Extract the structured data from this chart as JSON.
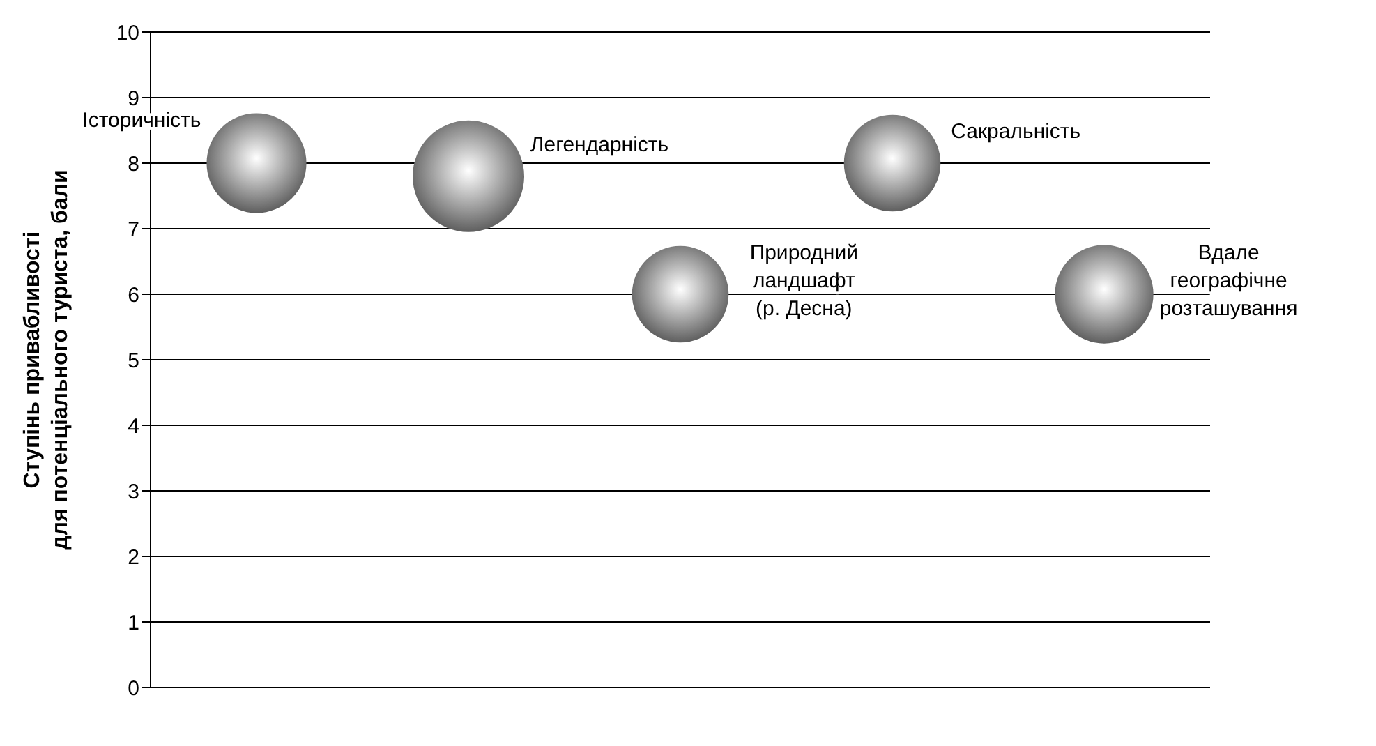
{
  "chart_data": {
    "type": "bubble",
    "ylabel": "Ступінь привабливості\nдля потенціального туриста, бали",
    "categories": [
      null,
      null,
      null,
      null,
      null
    ],
    "values": [
      8,
      7.8,
      6,
      8,
      6
    ],
    "sizes": [
      0.8,
      1,
      0.75,
      0.75,
      0.78
    ],
    "color": "#505050",
    "ylim": [
      0,
      10
    ],
    "yticks": [
      0,
      1,
      2,
      3,
      4,
      5,
      6,
      7,
      8,
      9,
      10
    ],
    "grid": "y",
    "annotations": [
      "Історичність",
      "Легендарність",
      "Природний\nландшафт\n(р. Десна)",
      "Сакральність",
      "Вдале\nгеографічне\nрозташування"
    ]
  }
}
